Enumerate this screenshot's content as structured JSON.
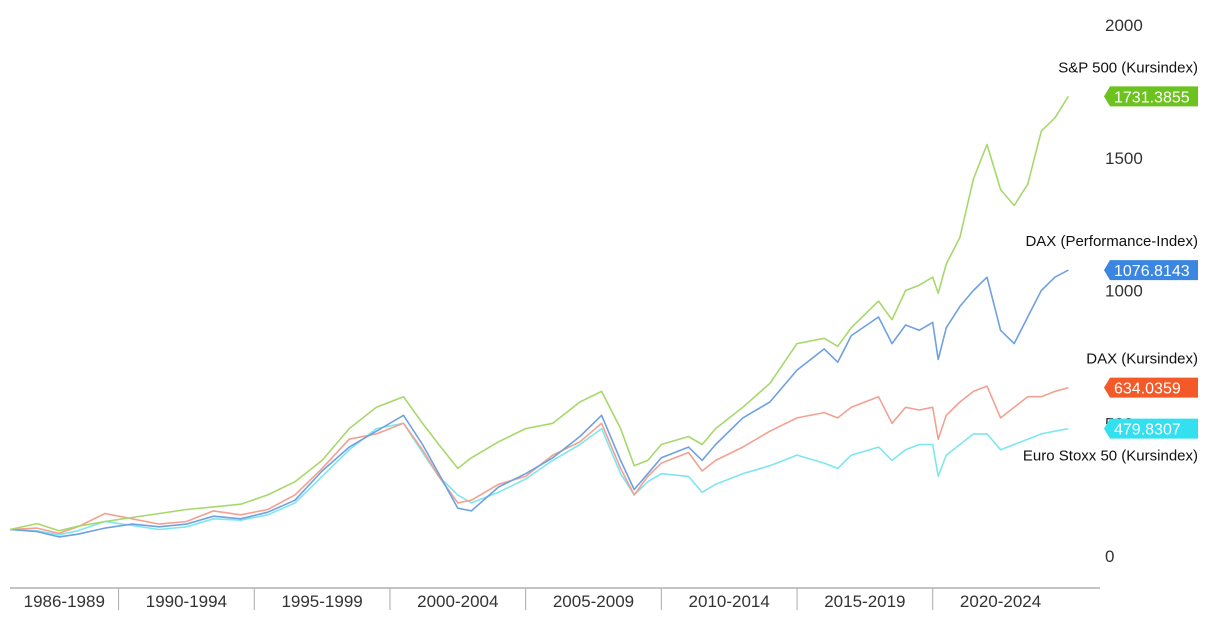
{
  "chart_data": {
    "type": "line",
    "title": "",
    "xlabel": "",
    "ylabel": "",
    "x_start": 1986,
    "x_end": 2025.5,
    "ylim": [
      0,
      2000
    ],
    "y_ticks": [
      {
        "value": 2000,
        "label": "2000"
      },
      {
        "value": 1500,
        "label": "1500"
      },
      {
        "value": 1000,
        "label": "1000"
      },
      {
        "value": 500,
        "label": "500"
      },
      {
        "value": 0,
        "label": "0"
      }
    ],
    "x_categories": [
      {
        "label": "1986-1989",
        "from": 1986,
        "to": 1990
      },
      {
        "label": "1990-1994",
        "from": 1990,
        "to": 1995
      },
      {
        "label": "1995-1999",
        "from": 1995,
        "to": 2000
      },
      {
        "label": "2000-2004",
        "from": 2000,
        "to": 2005
      },
      {
        "label": "2005-2009",
        "from": 2005,
        "to": 2010
      },
      {
        "label": "2010-2014",
        "from": 2010,
        "to": 2015
      },
      {
        "label": "2015-2019",
        "from": 2015,
        "to": 2020
      },
      {
        "label": "2020-2024",
        "from": 2020,
        "to": 2025
      }
    ],
    "grid": false,
    "legend": "end-of-line labels",
    "series": [
      {
        "name": "S&P 500 (Kursindex)",
        "color": "#a7d86a",
        "badge_color": "#6cc21e",
        "last_value": "1731.3855",
        "points": [
          [
            1986,
            100
          ],
          [
            1987,
            122
          ],
          [
            1987.8,
            95
          ],
          [
            1988.5,
            112
          ],
          [
            1989.5,
            130
          ],
          [
            1990.5,
            145
          ],
          [
            1991.5,
            160
          ],
          [
            1992.5,
            175
          ],
          [
            1993.5,
            185
          ],
          [
            1994.5,
            195
          ],
          [
            1995.5,
            230
          ],
          [
            1996.5,
            280
          ],
          [
            1997.5,
            360
          ],
          [
            1998.5,
            480
          ],
          [
            1999.5,
            560
          ],
          [
            2000.5,
            600
          ],
          [
            2001.2,
            500
          ],
          [
            2001.8,
            420
          ],
          [
            2002.5,
            330
          ],
          [
            2003,
            370
          ],
          [
            2004,
            430
          ],
          [
            2005,
            480
          ],
          [
            2006,
            500
          ],
          [
            2007,
            580
          ],
          [
            2007.8,
            620
          ],
          [
            2008.5,
            480
          ],
          [
            2009,
            340
          ],
          [
            2009.5,
            360
          ],
          [
            2010,
            420
          ],
          [
            2011,
            450
          ],
          [
            2011.5,
            420
          ],
          [
            2012,
            480
          ],
          [
            2013,
            560
          ],
          [
            2014,
            650
          ],
          [
            2015,
            800
          ],
          [
            2016,
            820
          ],
          [
            2016.5,
            790
          ],
          [
            2017,
            860
          ],
          [
            2018,
            960
          ],
          [
            2018.5,
            890
          ],
          [
            2019,
            1000
          ],
          [
            2019.5,
            1020
          ],
          [
            2020,
            1050
          ],
          [
            2020.2,
            990
          ],
          [
            2020.5,
            1100
          ],
          [
            2021,
            1200
          ],
          [
            2021.5,
            1420
          ],
          [
            2022,
            1550
          ],
          [
            2022.5,
            1380
          ],
          [
            2023,
            1320
          ],
          [
            2023.5,
            1400
          ],
          [
            2024,
            1600
          ],
          [
            2024.5,
            1650
          ],
          [
            2025,
            1731.3855
          ]
        ]
      },
      {
        "name": "DAX (Performance-Index)",
        "color": "#6fa1e0",
        "badge_color": "#3b86e0",
        "last_value": "1076.8143",
        "points": [
          [
            1986,
            100
          ],
          [
            1987,
            92
          ],
          [
            1987.8,
            72
          ],
          [
            1988.5,
            82
          ],
          [
            1989.5,
            105
          ],
          [
            1990.5,
            120
          ],
          [
            1991.5,
            110
          ],
          [
            1992.5,
            120
          ],
          [
            1993.5,
            150
          ],
          [
            1994.5,
            140
          ],
          [
            1995.5,
            165
          ],
          [
            1996.5,
            210
          ],
          [
            1997.5,
            320
          ],
          [
            1998.5,
            410
          ],
          [
            1999.5,
            470
          ],
          [
            2000.5,
            530
          ],
          [
            2001.2,
            420
          ],
          [
            2001.8,
            310
          ],
          [
            2002.5,
            180
          ],
          [
            2003,
            170
          ],
          [
            2004,
            260
          ],
          [
            2005,
            310
          ],
          [
            2006,
            370
          ],
          [
            2007,
            450
          ],
          [
            2007.8,
            530
          ],
          [
            2008.5,
            360
          ],
          [
            2009,
            250
          ],
          [
            2009.5,
            310
          ],
          [
            2010,
            370
          ],
          [
            2011,
            410
          ],
          [
            2011.5,
            360
          ],
          [
            2012,
            420
          ],
          [
            2013,
            520
          ],
          [
            2014,
            580
          ],
          [
            2015,
            700
          ],
          [
            2016,
            780
          ],
          [
            2016.5,
            730
          ],
          [
            2017,
            830
          ],
          [
            2018,
            900
          ],
          [
            2018.5,
            800
          ],
          [
            2019,
            870
          ],
          [
            2019.5,
            850
          ],
          [
            2020,
            880
          ],
          [
            2020.2,
            740
          ],
          [
            2020.5,
            860
          ],
          [
            2021,
            940
          ],
          [
            2021.5,
            1000
          ],
          [
            2022,
            1050
          ],
          [
            2022.5,
            850
          ],
          [
            2023,
            800
          ],
          [
            2023.5,
            900
          ],
          [
            2024,
            1000
          ],
          [
            2024.5,
            1050
          ],
          [
            2025,
            1076.8143
          ]
        ]
      },
      {
        "name": "DAX (Kursindex)",
        "color": "#f2a190",
        "badge_color": "#f45a28",
        "last_value": "634.0359",
        "points": [
          [
            1986,
            100
          ],
          [
            1987,
            105
          ],
          [
            1987.8,
            85
          ],
          [
            1988.5,
            110
          ],
          [
            1989.5,
            160
          ],
          [
            1990.5,
            140
          ],
          [
            1991.5,
            120
          ],
          [
            1992.5,
            130
          ],
          [
            1993.5,
            170
          ],
          [
            1994.5,
            155
          ],
          [
            1995.5,
            175
          ],
          [
            1996.5,
            230
          ],
          [
            1997.5,
            330
          ],
          [
            1998.5,
            440
          ],
          [
            1999.5,
            460
          ],
          [
            2000.5,
            500
          ],
          [
            2001.2,
            400
          ],
          [
            2001.8,
            300
          ],
          [
            2002.5,
            200
          ],
          [
            2003,
            210
          ],
          [
            2004,
            270
          ],
          [
            2005,
            300
          ],
          [
            2006,
            380
          ],
          [
            2007,
            430
          ],
          [
            2007.8,
            500
          ],
          [
            2008.5,
            330
          ],
          [
            2009,
            230
          ],
          [
            2009.5,
            300
          ],
          [
            2010,
            350
          ],
          [
            2011,
            390
          ],
          [
            2011.5,
            320
          ],
          [
            2012,
            360
          ],
          [
            2013,
            410
          ],
          [
            2014,
            470
          ],
          [
            2015,
            520
          ],
          [
            2016,
            540
          ],
          [
            2016.5,
            520
          ],
          [
            2017,
            560
          ],
          [
            2018,
            600
          ],
          [
            2018.5,
            500
          ],
          [
            2019,
            560
          ],
          [
            2019.5,
            550
          ],
          [
            2020,
            560
          ],
          [
            2020.2,
            440
          ],
          [
            2020.5,
            530
          ],
          [
            2021,
            580
          ],
          [
            2021.5,
            620
          ],
          [
            2022,
            640
          ],
          [
            2022.5,
            520
          ],
          [
            2023,
            560
          ],
          [
            2023.5,
            600
          ],
          [
            2024,
            600
          ],
          [
            2024.5,
            620
          ],
          [
            2025,
            634.0359
          ]
        ]
      },
      {
        "name": "Euro Stoxx 50 (Kursindex)",
        "color": "#7ee6ef",
        "badge_color": "#33e0f0",
        "last_value": "479.8307",
        "points": [
          [
            1986,
            100
          ],
          [
            1987,
            95
          ],
          [
            1987.8,
            80
          ],
          [
            1988.5,
            95
          ],
          [
            1989.5,
            130
          ],
          [
            1990.5,
            115
          ],
          [
            1991.5,
            100
          ],
          [
            1992.5,
            110
          ],
          [
            1993.5,
            140
          ],
          [
            1994.5,
            135
          ],
          [
            1995.5,
            155
          ],
          [
            1996.5,
            200
          ],
          [
            1997.5,
            300
          ],
          [
            1998.5,
            400
          ],
          [
            1999.5,
            480
          ],
          [
            2000.5,
            500
          ],
          [
            2001.2,
            390
          ],
          [
            2001.8,
            300
          ],
          [
            2002.5,
            230
          ],
          [
            2003,
            200
          ],
          [
            2004,
            240
          ],
          [
            2005,
            290
          ],
          [
            2006,
            360
          ],
          [
            2007,
            420
          ],
          [
            2007.8,
            480
          ],
          [
            2008.5,
            310
          ],
          [
            2009,
            230
          ],
          [
            2009.5,
            280
          ],
          [
            2010,
            310
          ],
          [
            2011,
            300
          ],
          [
            2011.5,
            240
          ],
          [
            2012,
            270
          ],
          [
            2013,
            310
          ],
          [
            2014,
            340
          ],
          [
            2015,
            380
          ],
          [
            2016,
            350
          ],
          [
            2016.5,
            330
          ],
          [
            2017,
            380
          ],
          [
            2018,
            410
          ],
          [
            2018.5,
            360
          ],
          [
            2019,
            400
          ],
          [
            2019.5,
            420
          ],
          [
            2020,
            420
          ],
          [
            2020.2,
            300
          ],
          [
            2020.5,
            380
          ],
          [
            2021,
            420
          ],
          [
            2021.5,
            460
          ],
          [
            2022,
            460
          ],
          [
            2022.5,
            400
          ],
          [
            2023,
            420
          ],
          [
            2023.5,
            440
          ],
          [
            2024,
            460
          ],
          [
            2024.5,
            470
          ],
          [
            2025,
            479.8307
          ]
        ]
      }
    ]
  }
}
